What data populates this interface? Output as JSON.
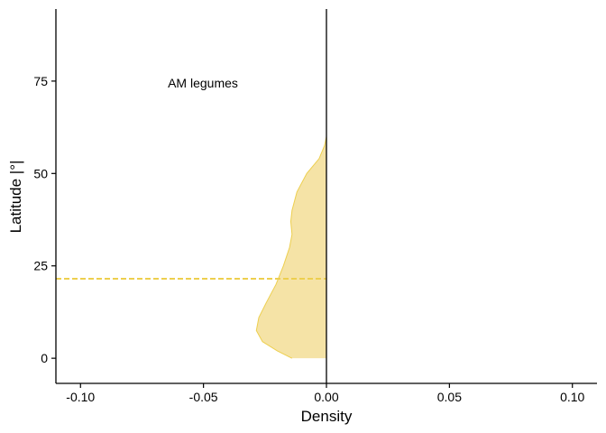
{
  "chart_data": {
    "type": "area",
    "title": "",
    "xlabel": "Density",
    "ylabel": "Latitude |°|",
    "xlim": [
      -0.11,
      0.11
    ],
    "ylim": [
      -6.8,
      94.5
    ],
    "x_ticks": [
      -0.1,
      -0.05,
      0.0,
      0.05,
      0.1
    ],
    "x_tick_labels": [
      "-0.10",
      "-0.05",
      "0.00",
      "0.05",
      "0.10"
    ],
    "y_ticks": [
      0,
      25,
      50,
      75
    ],
    "y_tick_labels": [
      "0",
      "25",
      "50",
      "75"
    ],
    "grid": false,
    "annotation": {
      "text": "AM legumes",
      "x": -0.05,
      "y": 74
    },
    "reference_line": {
      "x": 0.0,
      "style": "solid",
      "color": "#000000"
    },
    "mean_line": {
      "y": 21.5,
      "style": "dashed",
      "color": "#EDCF4F"
    },
    "series": [
      {
        "name": "AM legumes",
        "fill_color": "#F5E3A6",
        "stroke_color": "#EDCF4F",
        "points": [
          {
            "density": -0.014,
            "latitude": 0
          },
          {
            "density": -0.02,
            "latitude": 2
          },
          {
            "density": -0.026,
            "latitude": 4.5
          },
          {
            "density": -0.0285,
            "latitude": 7.5
          },
          {
            "density": -0.0275,
            "latitude": 11
          },
          {
            "density": -0.0245,
            "latitude": 15
          },
          {
            "density": -0.0205,
            "latitude": 20
          },
          {
            "density": -0.0175,
            "latitude": 25
          },
          {
            "density": -0.015,
            "latitude": 30
          },
          {
            "density": -0.014,
            "latitude": 33.5
          },
          {
            "density": -0.0145,
            "latitude": 37
          },
          {
            "density": -0.014,
            "latitude": 40
          },
          {
            "density": -0.012,
            "latitude": 45
          },
          {
            "density": -0.008,
            "latitude": 50
          },
          {
            "density": -0.003,
            "latitude": 54
          },
          {
            "density": -0.0008,
            "latitude": 57.5
          },
          {
            "density": 0.0,
            "latitude": 60
          }
        ]
      }
    ]
  }
}
